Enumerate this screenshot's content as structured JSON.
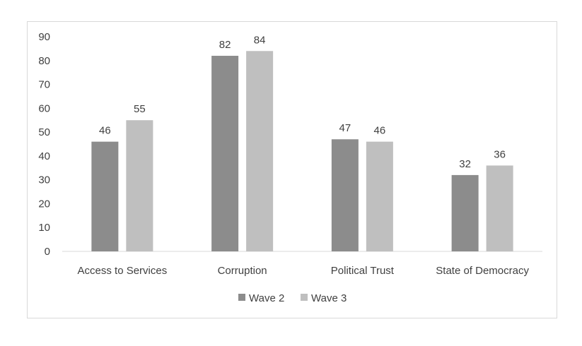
{
  "chart_data": {
    "type": "bar",
    "categories": [
      "Access to Services",
      "Corruption",
      "Political Trust",
      "State of Democracy"
    ],
    "series": [
      {
        "name": "Wave 2",
        "values": [
          46,
          82,
          47,
          32
        ],
        "color": "#8c8c8c"
      },
      {
        "name": "Wave 3",
        "values": [
          55,
          84,
          46,
          36
        ],
        "color": "#bfbfbf"
      }
    ],
    "ylim": [
      0,
      90
    ],
    "yticks": [
      0,
      10,
      20,
      30,
      40,
      50,
      60,
      70,
      80,
      90
    ],
    "grid": false,
    "legend": "bottom",
    "data_labels": true,
    "title": "",
    "xlabel": "",
    "ylabel": ""
  }
}
